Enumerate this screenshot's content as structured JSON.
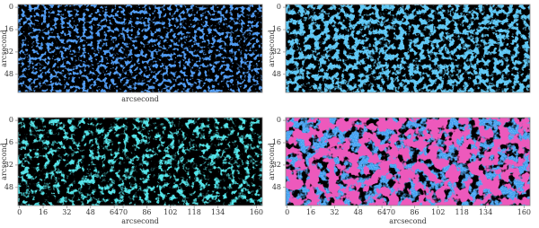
{
  "chart_data": [
    {
      "type": "image",
      "color": "#3b8ff0",
      "xlim": [
        -1,
        164
      ],
      "ylim": [
        -2,
        61
      ],
      "yticks": [
        0,
        16,
        32,
        48
      ],
      "ylabel": "arcsecond",
      "xlabel": "arcsecond"
    },
    {
      "type": "image",
      "color": "#4cc0f2",
      "xlim": [
        -1,
        164
      ],
      "ylim": [
        -2,
        61
      ],
      "yticks": [
        0,
        16,
        32,
        48
      ],
      "ylabel": "arcsecond"
    },
    {
      "type": "image",
      "color": "#3fe0e6",
      "xlim": [
        -1,
        164
      ],
      "ylim": [
        -2,
        61
      ],
      "xticks": [
        0,
        16,
        32,
        48,
        64,
        70,
        86,
        102,
        118,
        134,
        160
      ],
      "yticks": [
        0,
        16,
        32,
        48
      ],
      "ylabel": "arcsecond",
      "xlabel": "arcsecond"
    },
    {
      "type": "image",
      "color": "#3a9cf0",
      "xlim": [
        -1,
        164
      ],
      "ylim": [
        -2,
        61
      ],
      "xticks": [
        0,
        16,
        32,
        48,
        64,
        70,
        86,
        102,
        118,
        134,
        160
      ],
      "yticks": [
        0,
        16,
        32,
        48
      ],
      "ylabel": "arcsecond",
      "xlabel": "arcsecond"
    }
  ]
}
